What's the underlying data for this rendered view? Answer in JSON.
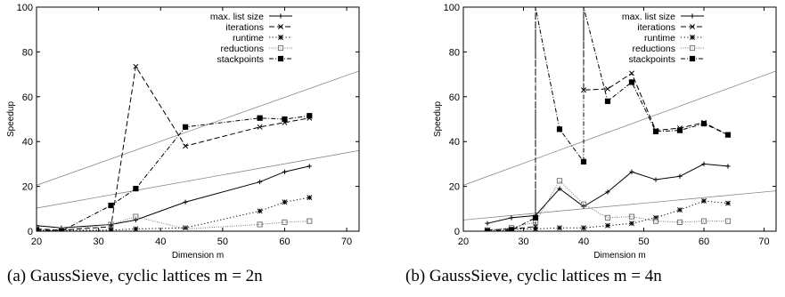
{
  "chart_data": [
    {
      "type": "line",
      "panel_label": "(a)",
      "caption": "GaussSieve, cyclic lattices m = 2n",
      "xlabel": "Dimension m",
      "ylabel": "Speedup",
      "xlim": [
        20,
        72
      ],
      "ylim": [
        0,
        100
      ],
      "xticks": [
        20,
        30,
        40,
        50,
        60,
        70
      ],
      "yticks": [
        0,
        20,
        40,
        60,
        80,
        100
      ],
      "grid": false,
      "legend_position": "top-left",
      "reference_lines": [
        {
          "style": "thin-grey",
          "x": [
            20,
            72
          ],
          "y": [
            10.3,
            36
          ]
        },
        {
          "style": "thin-grey",
          "x": [
            20,
            72
          ],
          "y": [
            20.5,
            71.5
          ]
        }
      ],
      "series": [
        {
          "name": "max. list size",
          "line": "solid",
          "marker": "plus",
          "x": [
            20,
            24,
            32,
            36,
            44,
            56,
            60,
            64
          ],
          "y": [
            2.5,
            1.5,
            3,
            5,
            13,
            22,
            26.5,
            29
          ]
        },
        {
          "name": "iterations",
          "line": "dashed",
          "marker": "cross",
          "x": [
            20,
            24,
            32,
            36,
            44,
            56,
            60,
            64
          ],
          "y": [
            1,
            0.5,
            2,
            73.5,
            38,
            46.5,
            48.5,
            50.5
          ]
        },
        {
          "name": "runtime",
          "line": "dotted",
          "marker": "star",
          "x": [
            20,
            24,
            32,
            36,
            44,
            56,
            60,
            64
          ],
          "y": [
            0.5,
            0.3,
            0.5,
            1,
            1.5,
            9,
            13,
            15
          ]
        },
        {
          "name": "reductions",
          "line": "dotted-sparse",
          "marker": "box",
          "x": [
            20,
            24,
            32,
            36,
            44,
            56,
            60,
            64
          ],
          "y": [
            0.5,
            0.5,
            3,
            6.5,
            1,
            3,
            4,
            4.5
          ]
        },
        {
          "name": "stackpoints",
          "line": "dash-dot",
          "marker": "filled-box",
          "x": [
            20,
            24,
            32,
            36,
            44,
            56,
            60,
            64
          ],
          "y": [
            0.5,
            0,
            11.5,
            19,
            46.5,
            50.5,
            50,
            51.5
          ]
        }
      ]
    },
    {
      "type": "line",
      "panel_label": "(b)",
      "caption": "GaussSieve, cyclic lattices m = 4n",
      "xlabel": "Dimension m",
      "ylabel": "Speedup",
      "xlim": [
        20,
        72
      ],
      "ylim": [
        0,
        100
      ],
      "xticks": [
        20,
        30,
        40,
        50,
        60,
        70
      ],
      "yticks": [
        0,
        20,
        40,
        60,
        80,
        100
      ],
      "grid": false,
      "legend_position": "top-left",
      "reference_lines": [
        {
          "style": "thin-grey",
          "x": [
            20,
            72
          ],
          "y": [
            5,
            18
          ]
        },
        {
          "style": "thin-grey",
          "x": [
            20,
            72
          ],
          "y": [
            20.5,
            71.5
          ]
        }
      ],
      "series": [
        {
          "name": "max. list size",
          "line": "solid",
          "marker": "plus",
          "x": [
            24,
            28,
            32,
            36,
            40,
            44,
            48,
            52,
            56,
            60,
            64
          ],
          "y": [
            3.5,
            6,
            7,
            19,
            11,
            17.5,
            26.5,
            23,
            24.5,
            30,
            29
          ]
        },
        {
          "name": "iterations",
          "line": "dashed",
          "marker": "cross",
          "x": [
            24,
            28,
            32,
            32,
            36,
            40,
            40,
            44,
            48,
            52,
            56,
            60,
            64
          ],
          "y": [
            0.5,
            1,
            2,
            100,
            100,
            100,
            63,
            63.5,
            70.5,
            45,
            46,
            48.5,
            43
          ]
        },
        {
          "name": "runtime",
          "line": "dotted",
          "marker": "star",
          "x": [
            24,
            28,
            32,
            36,
            40,
            44,
            48,
            52,
            56,
            60,
            64
          ],
          "y": [
            0.5,
            1,
            1,
            1.5,
            1.5,
            2.5,
            3.5,
            6,
            9.5,
            13.5,
            12.5
          ]
        },
        {
          "name": "reductions",
          "line": "dotted-sparse",
          "marker": "box",
          "x": [
            24,
            28,
            32,
            36,
            40,
            44,
            48,
            52,
            56,
            60,
            64
          ],
          "y": [
            0.5,
            1.5,
            4,
            22.5,
            12,
            6,
            6.5,
            4.5,
            4,
            4.5,
            4.5
          ]
        },
        {
          "name": "stackpoints",
          "line": "dash-dot",
          "marker": "filled-box",
          "x": [
            24,
            28,
            32,
            32,
            36,
            40,
            40,
            44,
            48,
            52,
            56,
            60,
            64
          ],
          "y": [
            0,
            0.5,
            6,
            100,
            45.5,
            31,
            100,
            58,
            66.5,
            44.5,
            45,
            48,
            43
          ]
        }
      ]
    }
  ]
}
